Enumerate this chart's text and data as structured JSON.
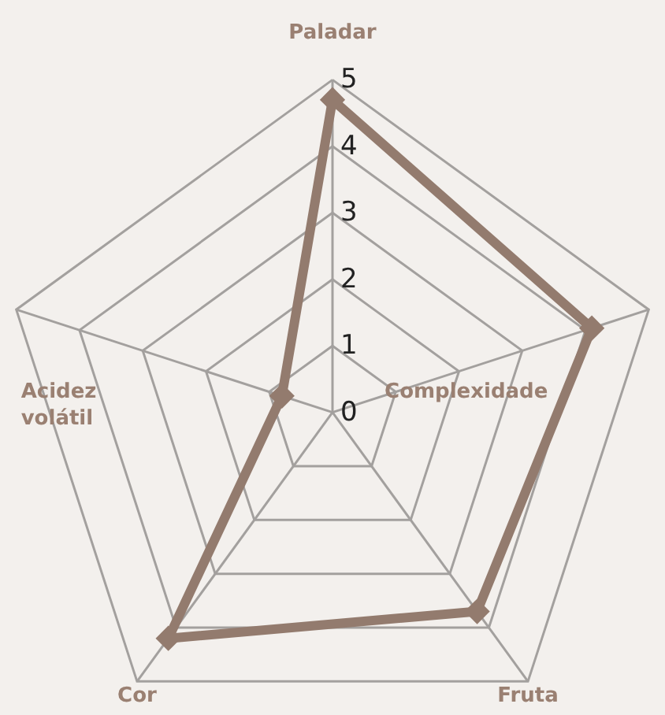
{
  "chart_data": {
    "type": "radar",
    "categories": [
      "Paladar",
      "Complexidade",
      "Fruta",
      "Cor",
      "Acidez volátil"
    ],
    "series": [
      {
        "color": "#937b6e",
        "values": [
          4.7,
          4.1,
          3.7,
          4.2,
          0.8
        ]
      }
    ],
    "ylim": [
      0,
      5
    ],
    "yticks": [
      0,
      1,
      2,
      3,
      4,
      5
    ],
    "grid": true,
    "marker": "diamond",
    "line_style": "solid"
  }
}
